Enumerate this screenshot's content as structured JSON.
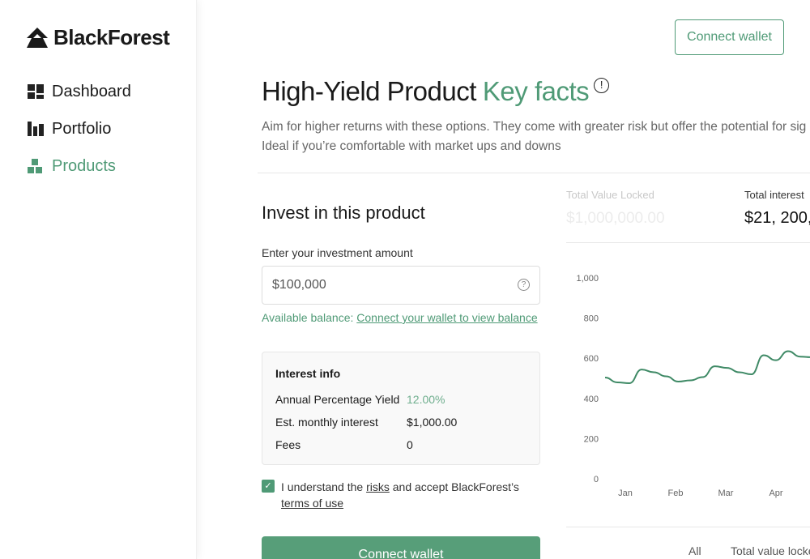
{
  "brand": {
    "name": "BlackForest",
    "logo_icon": "tree-icon"
  },
  "sidebar": {
    "items": [
      {
        "label": "Dashboard",
        "icon": "dashboard-icon",
        "active": false
      },
      {
        "label": "Portfolio",
        "icon": "bar-chart-icon",
        "active": false
      },
      {
        "label": "Products",
        "icon": "blocks-icon",
        "active": true
      }
    ]
  },
  "header": {
    "connect_wallet": "Connect wallet"
  },
  "page": {
    "title": "High-Yield Product",
    "title_accent": "Key facts",
    "info_icon": "info-icon",
    "subtitle_line1": "Aim for higher returns with these options. They come with greater risk but offer the potential for sig",
    "subtitle_line2": "Ideal if you’re comfortable with market ups and downs"
  },
  "invest": {
    "heading": "Invest in this product",
    "amount_label": "Enter your investment amount",
    "amount_value": "$100,000",
    "balance_label": "Available balance:",
    "balance_link": "Connect your wallet to view balance",
    "interest": {
      "heading": "Interest info",
      "rows": [
        {
          "label": "Annual Percentage Yield",
          "value": "12.00%"
        },
        {
          "label": "Est. monthly interest",
          "value": "$1,000.00"
        },
        {
          "label": "Fees",
          "value": "0"
        }
      ]
    },
    "terms": {
      "checked": true,
      "pre": "I understand the ",
      "risks": "risks",
      "mid": " and accept BlackForest’s",
      "terms": "terms of use"
    },
    "button": "Connect wallet"
  },
  "stats": [
    {
      "label": "Total Value Locked",
      "value": "$1,000,000.00"
    },
    {
      "label": "Total interest",
      "value": "$21, 200,"
    }
  ],
  "chart_tabs": {
    "all": "All",
    "tvl": "Total value locke"
  },
  "colors": {
    "accent": "#4f9a76",
    "line": "#3f8a66"
  },
  "chart_data": {
    "type": "line",
    "ylim": [
      0,
      1000
    ],
    "yticks": [
      "1,000",
      "800",
      "600",
      "400",
      "200",
      "0"
    ],
    "ytick_values": [
      1000,
      800,
      600,
      400,
      200,
      0
    ],
    "xticks": [
      "Jan",
      "Feb",
      "Mar",
      "Apr"
    ],
    "grid": false,
    "series": [
      {
        "values": [
          504,
          480,
          476,
          544,
          530,
          510,
          484,
          490,
          506,
          560,
          552,
          530,
          520,
          615,
          590,
          635,
          608,
          605
        ]
      }
    ]
  }
}
